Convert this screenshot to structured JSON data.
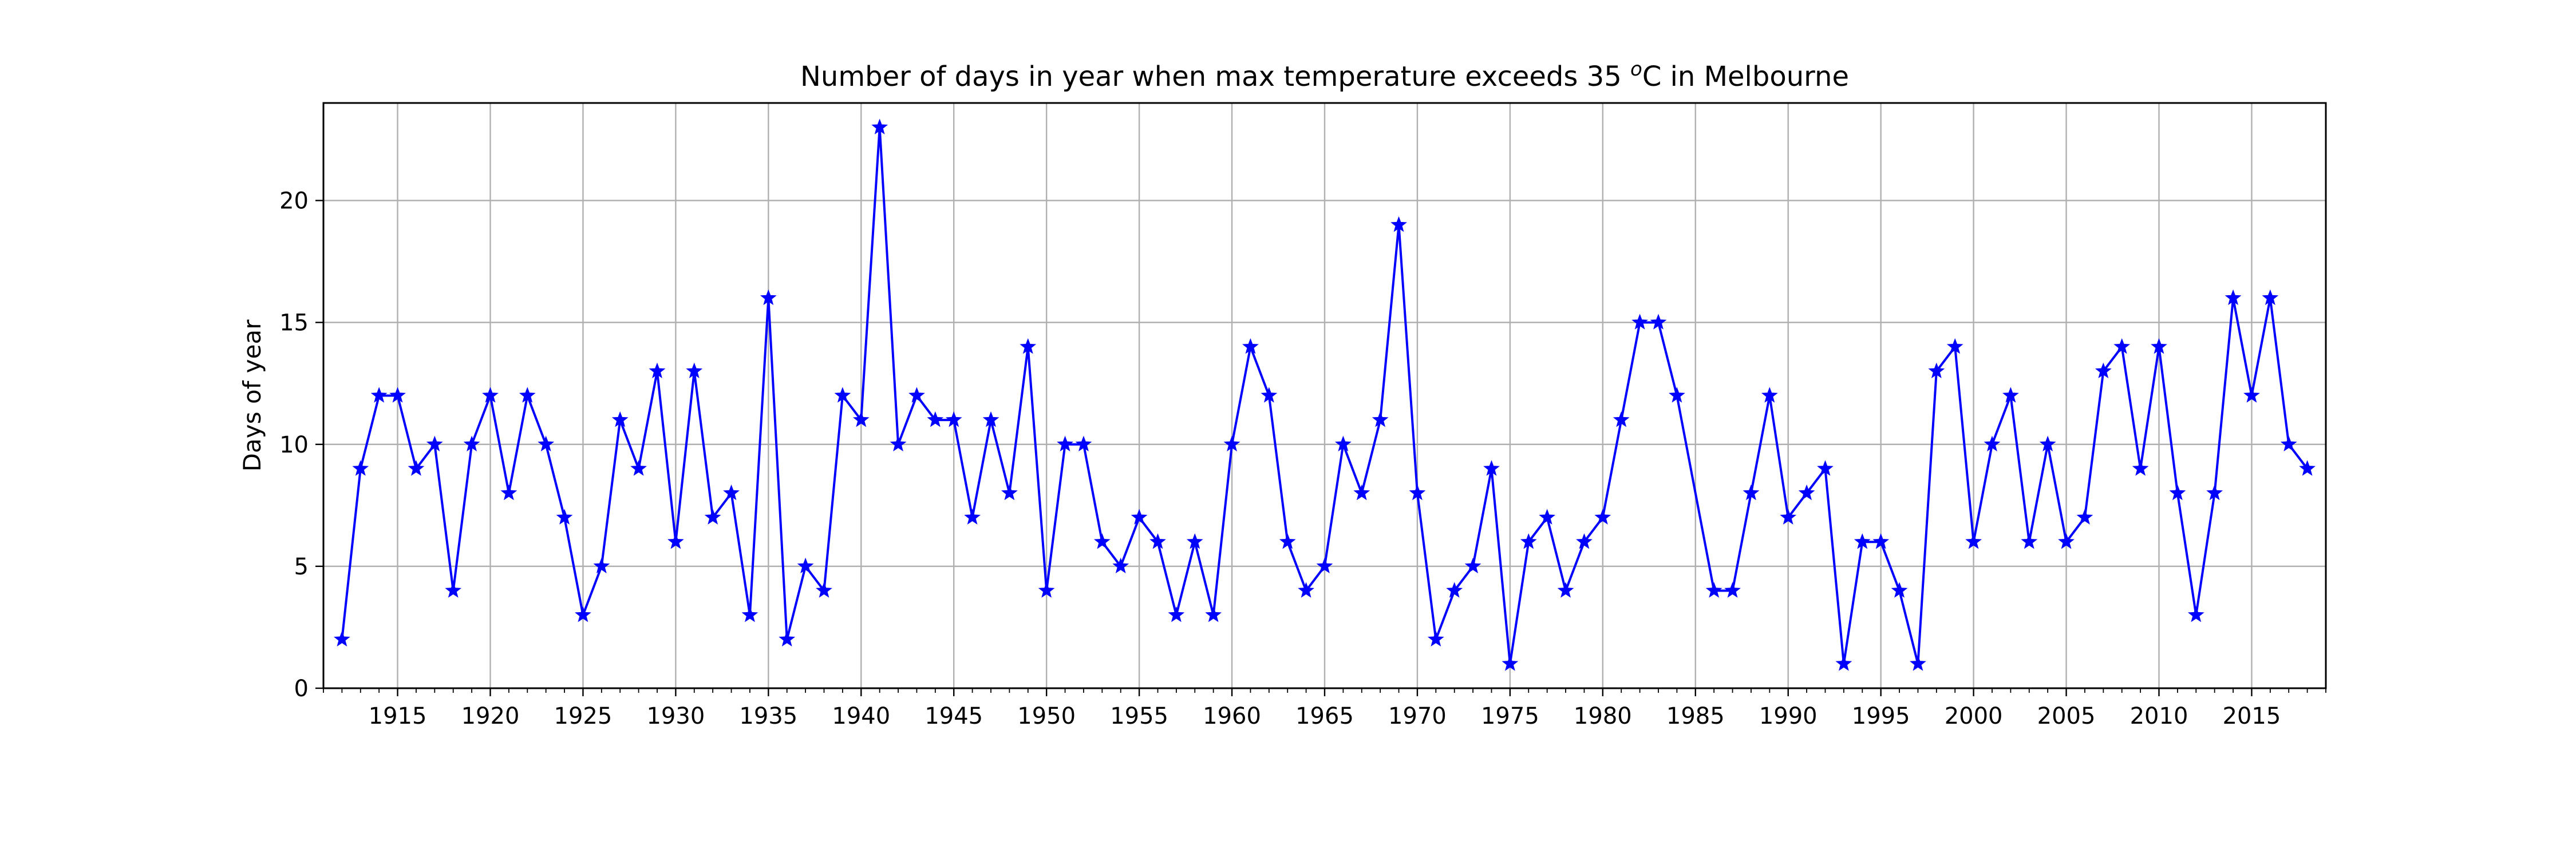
{
  "chart_data": {
    "type": "line",
    "title_parts": [
      "Number of days in year when max temperature exceeds 35 ",
      "o",
      "C in Melbourne"
    ],
    "xlabel": "",
    "ylabel": "Days of year",
    "xlim": [
      1911,
      2019
    ],
    "ylim": [
      0,
      24
    ],
    "x_ticks": [
      1915,
      1920,
      1925,
      1930,
      1935,
      1940,
      1945,
      1950,
      1955,
      1960,
      1965,
      1970,
      1975,
      1980,
      1985,
      1990,
      1995,
      2000,
      2005,
      2010,
      2015
    ],
    "y_ticks": [
      0,
      5,
      10,
      15,
      20
    ],
    "grid": true,
    "series": [
      {
        "color": "#0000ff",
        "marker": "star",
        "points": [
          [
            1912,
            2
          ],
          [
            1913,
            9
          ],
          [
            1914,
            12
          ],
          [
            1915,
            12
          ],
          [
            1916,
            9
          ],
          [
            1917,
            10
          ],
          [
            1918,
            4
          ],
          [
            1919,
            10
          ],
          [
            1920,
            12
          ],
          [
            1921,
            8
          ],
          [
            1922,
            12
          ],
          [
            1923,
            10
          ],
          [
            1924,
            7
          ],
          [
            1925,
            3
          ],
          [
            1926,
            5
          ],
          [
            1927,
            11
          ],
          [
            1928,
            9
          ],
          [
            1929,
            13
          ],
          [
            1930,
            6
          ],
          [
            1931,
            13
          ],
          [
            1932,
            7
          ],
          [
            1933,
            8
          ],
          [
            1934,
            3
          ],
          [
            1935,
            16
          ],
          [
            1936,
            2
          ],
          [
            1937,
            5
          ],
          [
            1938,
            4
          ],
          [
            1939,
            12
          ],
          [
            1940,
            11
          ],
          [
            1941,
            23
          ],
          [
            1942,
            10
          ],
          [
            1943,
            12
          ],
          [
            1944,
            11
          ],
          [
            1945,
            11
          ],
          [
            1946,
            7
          ],
          [
            1947,
            11
          ],
          [
            1948,
            8
          ],
          [
            1949,
            14
          ],
          [
            1950,
            4
          ],
          [
            1951,
            10
          ],
          [
            1952,
            10
          ],
          [
            1953,
            6
          ],
          [
            1954,
            5
          ],
          [
            1955,
            7
          ],
          [
            1956,
            6
          ],
          [
            1957,
            3
          ],
          [
            1958,
            6
          ],
          [
            1959,
            3
          ],
          [
            1960,
            10
          ],
          [
            1961,
            14
          ],
          [
            1962,
            12
          ],
          [
            1963,
            6
          ],
          [
            1964,
            4
          ],
          [
            1965,
            5
          ],
          [
            1966,
            10
          ],
          [
            1967,
            8
          ],
          [
            1968,
            11
          ],
          [
            1969,
            19
          ],
          [
            1970,
            8
          ],
          [
            1971,
            2
          ],
          [
            1972,
            4
          ],
          [
            1973,
            5
          ],
          [
            1974,
            9
          ],
          [
            1975,
            1
          ],
          [
            1976,
            6
          ],
          [
            1977,
            7
          ],
          [
            1978,
            4
          ],
          [
            1979,
            6
          ],
          [
            1980,
            7
          ],
          [
            1981,
            11
          ],
          [
            1982,
            15
          ],
          [
            1983,
            15
          ],
          [
            1984,
            12
          ],
          [
            1986,
            4
          ],
          [
            1987,
            4
          ],
          [
            1988,
            8
          ],
          [
            1989,
            12
          ],
          [
            1990,
            7
          ],
          [
            1991,
            8
          ],
          [
            1992,
            9
          ],
          [
            1993,
            1
          ],
          [
            1994,
            6
          ],
          [
            1995,
            6
          ],
          [
            1996,
            4
          ],
          [
            1997,
            1
          ],
          [
            1998,
            13
          ],
          [
            1999,
            14
          ],
          [
            2000,
            6
          ],
          [
            2001,
            10
          ],
          [
            2002,
            12
          ],
          [
            2003,
            6
          ],
          [
            2004,
            10
          ],
          [
            2005,
            6
          ],
          [
            2006,
            7
          ],
          [
            2007,
            13
          ],
          [
            2008,
            14
          ],
          [
            2009,
            9
          ],
          [
            2010,
            14
          ],
          [
            2011,
            8
          ],
          [
            2012,
            3
          ],
          [
            2013,
            8
          ],
          [
            2014,
            16
          ],
          [
            2015,
            12
          ],
          [
            2016,
            16
          ],
          [
            2017,
            10
          ],
          [
            2018,
            9
          ]
        ]
      }
    ]
  }
}
